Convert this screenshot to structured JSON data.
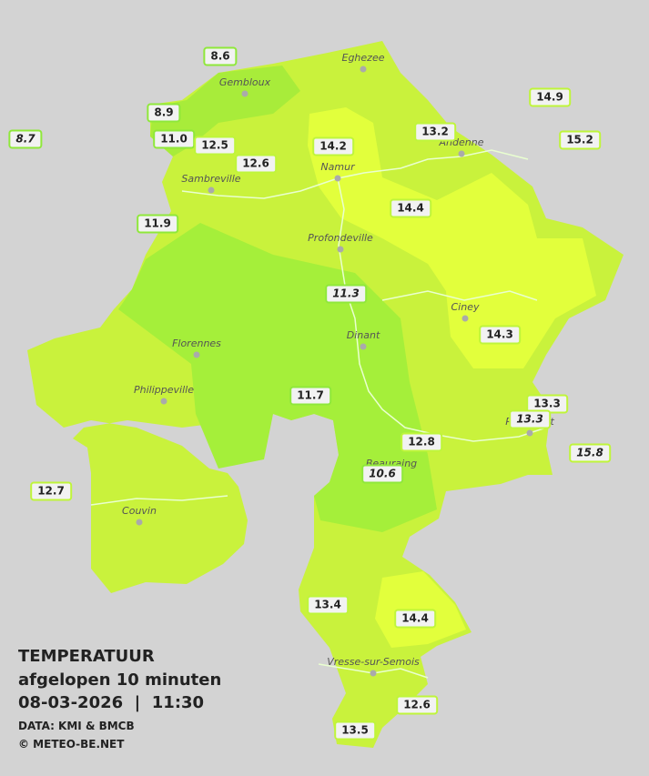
{
  "title": {
    "heading": "TEMPERATUUR",
    "subtitle": "afgelopen 10 minuten",
    "datetime": "08-03-2026  |  11:30",
    "source": "DATA: KMI & BMCB",
    "copyright": "© METEO-BE.NET"
  },
  "towns": [
    "Eghezee",
    "Gembloux",
    "Andenne",
    "Namur",
    "Sambreville",
    "Profondeville",
    "Ciney",
    "Dinant",
    "Florennes",
    "Philippeville",
    "Rochefort",
    "Beauraing",
    "Couvin",
    "Vresse-sur-Semois"
  ],
  "stations": [
    "8.6",
    "8.9",
    "8.7",
    "11.0",
    "12.5",
    "12.6",
    "14.2",
    "13.2",
    "14.9",
    "15.2",
    "11.9",
    "14.4",
    "11.3",
    "14.3",
    "11.7",
    "13.3",
    "13.3",
    "12.8",
    "15.8",
    "10.6",
    "12.7",
    "13.4",
    "14.4",
    "12.6",
    "13.5"
  ]
}
